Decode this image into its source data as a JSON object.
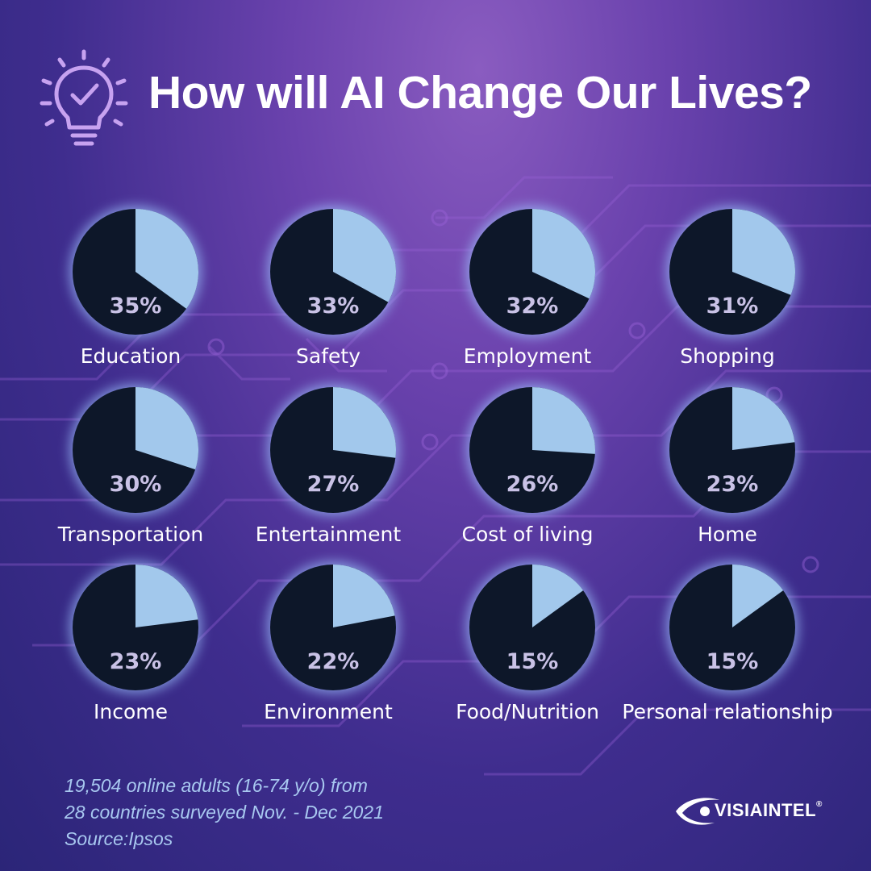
{
  "header": {
    "title": "How will AI Change Our Lives?",
    "icon": "lightbulb-check-icon"
  },
  "colors": {
    "pie_fill": "#a2c8ec",
    "pie_base": "#0d1729",
    "glow": "#9fc6ff",
    "label": "#ffffff",
    "percent": "#c9c2e6",
    "footnote": "#a8c8f0"
  },
  "chart_data": {
    "type": "pie",
    "title": "How will AI Change Our Lives?",
    "unit": "%",
    "categories": [
      "Education",
      "Safety",
      "Employment",
      "Shopping",
      "Transportation",
      "Entertainment",
      "Cost of living",
      "Home",
      "Income",
      "Environment",
      "Food/Nutrition",
      "Personal relationship"
    ],
    "values": [
      35,
      33,
      32,
      31,
      30,
      27,
      26,
      23,
      23,
      22,
      15,
      15
    ],
    "labels": [
      "35%",
      "33%",
      "32%",
      "31%",
      "30%",
      "27%",
      "26%",
      "23%",
      "23%",
      "22%",
      "15%",
      "15%"
    ]
  },
  "footnote": {
    "line1": "19,504 online adults (16-74 y/o) from",
    "line2": "28 countries surveyed Nov. -  Dec 2021",
    "line3": "Source:Ipsos"
  },
  "logo": {
    "text": "VISIAINTEL",
    "mark": "®",
    "icon": "eye-swoosh-icon"
  }
}
